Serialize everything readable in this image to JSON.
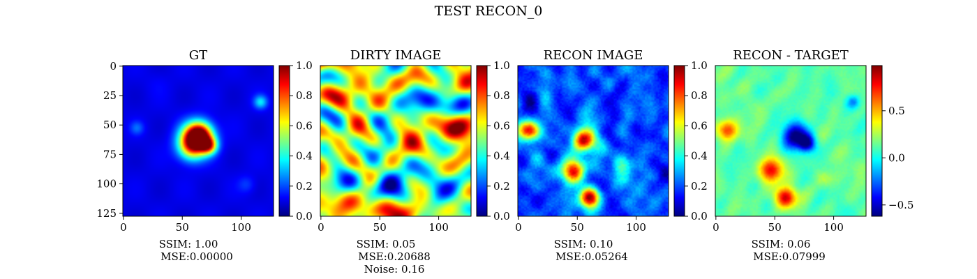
{
  "suptitle": "TEST RECON_0",
  "colors": {
    "colormap": "jet",
    "jet_stops": [
      "#00007f",
      "#0000ff",
      "#007fff",
      "#00ffff",
      "#7fff7f",
      "#ffff00",
      "#ff7f00",
      "#ff0000",
      "#7f0000"
    ]
  },
  "chart_data": [
    {
      "type": "heatmap",
      "title": "GT",
      "image_size": [
        128,
        128
      ],
      "x_ticks": [
        0,
        50,
        100
      ],
      "x_tick_labels": [
        "0",
        "50",
        "100"
      ],
      "y_ticks": [
        0,
        25,
        50,
        75,
        100,
        125
      ],
      "y_tick_labels": [
        "0",
        "25",
        "50",
        "75",
        "100",
        "125"
      ],
      "show_y_ticks": true,
      "colorbar": {
        "range": [
          0.0,
          1.0
        ],
        "ticks": [
          0.0,
          0.2,
          0.4,
          0.6,
          0.8,
          1.0
        ],
        "tick_labels": [
          "0.0",
          "0.2",
          "0.4",
          "0.6",
          "0.8",
          "1.0"
        ]
      },
      "metrics": [
        "SSIM: 1.00",
        "MSE:0.00000"
      ],
      "blobs": [
        {
          "x": 62,
          "y": 62,
          "r": 9,
          "v": 0.95
        },
        {
          "x": 73,
          "y": 68,
          "r": 5,
          "v": 0.65
        },
        {
          "x": 66,
          "y": 58,
          "r": 7,
          "v": 0.55
        },
        {
          "x": 58,
          "y": 70,
          "r": 8,
          "v": 0.45
        },
        {
          "x": 117,
          "y": 31,
          "r": 4,
          "v": 0.35
        },
        {
          "x": 12,
          "y": 53,
          "r": 4,
          "v": 0.22
        },
        {
          "x": 105,
          "y": 101,
          "r": 5,
          "v": 0.18
        },
        {
          "x": 30,
          "y": 15,
          "r": 7,
          "v": 0.12
        },
        {
          "x": 90,
          "y": 20,
          "r": 8,
          "v": 0.1
        },
        {
          "x": 40,
          "y": 110,
          "r": 8,
          "v": 0.1
        }
      ],
      "base_value": 0.1
    },
    {
      "type": "heatmap",
      "title": "DIRTY IMAGE",
      "image_size": [
        128,
        128
      ],
      "x_ticks": [
        0,
        50,
        100
      ],
      "x_tick_labels": [
        "0",
        "50",
        "100"
      ],
      "show_y_ticks": false,
      "colorbar": {
        "range": [
          0.0,
          1.0
        ],
        "ticks": [
          0.0,
          0.2,
          0.4,
          0.6,
          0.8,
          1.0
        ],
        "tick_labels": [
          "0.0",
          "0.2",
          "0.4",
          "0.6",
          "0.8",
          "1.0"
        ]
      },
      "metrics": [
        "SSIM: 0.05",
        "MSE:0.20688",
        "Noise: 0.16"
      ],
      "texture": "noisy",
      "seed": 7,
      "base_value": 0.55
    },
    {
      "type": "heatmap",
      "title": "RECON IMAGE",
      "image_size": [
        128,
        128
      ],
      "x_ticks": [
        0,
        50,
        100
      ],
      "x_tick_labels": [
        "0",
        "50",
        "100"
      ],
      "show_y_ticks": false,
      "colorbar": {
        "range": [
          0.0,
          1.0
        ],
        "ticks": [
          0.0,
          0.2,
          0.4,
          0.6,
          0.8,
          1.0
        ],
        "tick_labels": [
          "0.0",
          "0.2",
          "0.4",
          "0.6",
          "0.8",
          "1.0"
        ]
      },
      "metrics": [
        "SSIM: 0.10",
        "MSE:0.05264"
      ],
      "blobs": [
        {
          "x": 10,
          "y": 55,
          "r": 6,
          "v": 0.9
        },
        {
          "x": 56,
          "y": 64,
          "r": 7,
          "v": 0.95
        },
        {
          "x": 47,
          "y": 89,
          "r": 7,
          "v": 0.9
        },
        {
          "x": 60,
          "y": 112,
          "r": 6,
          "v": 1.0
        },
        {
          "x": 88,
          "y": 86,
          "r": 6,
          "v": 0.4
        },
        {
          "x": 92,
          "y": 98,
          "r": 5,
          "v": 0.35
        }
      ],
      "texture": "recon",
      "seed": 3,
      "base_value": 0.2
    },
    {
      "type": "heatmap",
      "title": "RECON - TARGET",
      "image_size": [
        128,
        128
      ],
      "x_ticks": [
        0,
        50,
        100
      ],
      "x_tick_labels": [
        "0",
        "50",
        "100"
      ],
      "show_y_ticks": false,
      "colorbar": {
        "range": [
          -0.62,
          0.98
        ],
        "ticks": [
          -0.5,
          0.0,
          0.5
        ],
        "tick_labels": [
          "−0.5",
          "0.0",
          "0.5"
        ]
      },
      "metrics": [
        "SSIM: 0.06",
        "MSE:0.07999"
      ],
      "blobs": [
        {
          "x": 10,
          "y": 55,
          "r": 6,
          "v": 0.75
        },
        {
          "x": 47,
          "y": 89,
          "r": 7,
          "v": 0.8
        },
        {
          "x": 60,
          "y": 112,
          "r": 6,
          "v": 0.9
        },
        {
          "x": 68,
          "y": 60,
          "r": 8,
          "v": -0.6
        },
        {
          "x": 78,
          "y": 66,
          "r": 5,
          "v": -0.5
        },
        {
          "x": 92,
          "y": 96,
          "r": 5,
          "v": 0.3
        },
        {
          "x": 117,
          "y": 31,
          "r": 4,
          "v": -0.2
        }
      ],
      "texture": "diff",
      "seed": 11,
      "base_value": 0.1
    }
  ]
}
